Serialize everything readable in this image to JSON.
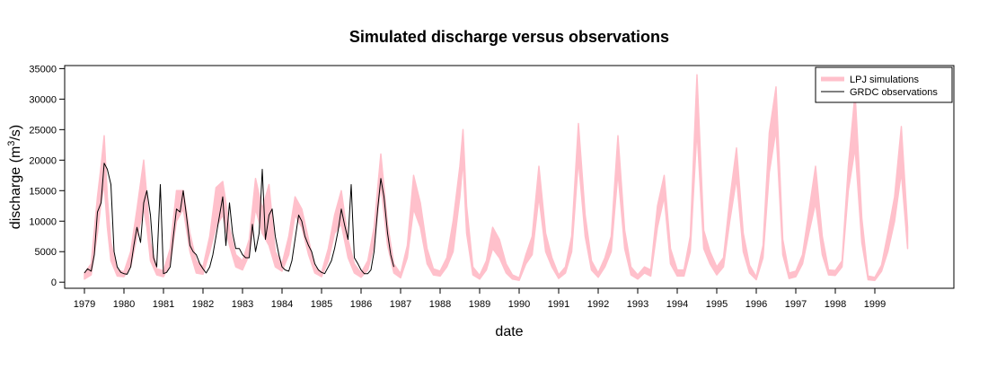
{
  "chart_data": {
    "type": "line",
    "title": "Simulated discharge versus observations",
    "xlabel": "date",
    "ylabel_main": "discharge (m",
    "ylabel_sup": "3",
    "ylabel_end": "/s)",
    "xlim": [
      1978.5,
      2001.0
    ],
    "ylim": [
      -1000,
      35500
    ],
    "x_ticks": [
      1979,
      1980,
      1981,
      1982,
      1983,
      1984,
      1985,
      1986,
      1987,
      1988,
      1989,
      1990,
      1991,
      1992,
      1993,
      1994,
      1995,
      1996,
      1997,
      1998,
      1999
    ],
    "x_tick_labels": [
      "1979",
      "1980",
      "1981",
      "1982",
      "1983",
      "1984",
      "1985",
      "1986",
      "1987",
      "1988",
      "1989",
      "1990",
      "1991",
      "1992",
      "1993",
      "1994",
      "1995",
      "1996",
      "1997",
      "1998",
      "1999"
    ],
    "y_ticks": [
      0,
      5000,
      10000,
      15000,
      20000,
      25000,
      30000,
      35000
    ],
    "y_tick_labels": [
      "0",
      "5000",
      "10000",
      "15000",
      "20000",
      "25000",
      "30000",
      "35000"
    ],
    "grid": false,
    "legend_position": "top-right",
    "series": [
      {
        "name": "LPJ simulations",
        "color": "#ffc0cb",
        "style": "band",
        "x": [
          1979.0,
          1979.17,
          1979.33,
          1979.42,
          1979.5,
          1979.58,
          1979.67,
          1979.83,
          1980.0,
          1980.17,
          1980.33,
          1980.5,
          1980.58,
          1980.67,
          1980.83,
          1981.0,
          1981.17,
          1981.33,
          1981.5,
          1981.67,
          1981.83,
          1982.0,
          1982.17,
          1982.33,
          1982.5,
          1982.67,
          1982.83,
          1983.0,
          1983.17,
          1983.33,
          1983.5,
          1983.67,
          1983.83,
          1984.0,
          1984.17,
          1984.33,
          1984.5,
          1984.67,
          1984.83,
          1985.0,
          1985.17,
          1985.33,
          1985.5,
          1985.67,
          1985.83,
          1986.0,
          1986.17,
          1986.33,
          1986.5,
          1986.67,
          1986.83,
          1987.0,
          1987.17,
          1987.33,
          1987.5,
          1987.67,
          1987.83,
          1988.0,
          1988.17,
          1988.33,
          1988.5,
          1988.58,
          1988.67,
          1988.83,
          1989.0,
          1989.17,
          1989.33,
          1989.5,
          1989.67,
          1989.83,
          1990.0,
          1990.17,
          1990.33,
          1990.5,
          1990.67,
          1990.83,
          1991.0,
          1991.17,
          1991.33,
          1991.5,
          1991.67,
          1991.83,
          1992.0,
          1992.17,
          1992.33,
          1992.5,
          1992.67,
          1992.83,
          1993.0,
          1993.17,
          1993.33,
          1993.5,
          1993.67,
          1993.83,
          1994.0,
          1994.17,
          1994.33,
          1994.5,
          1994.67,
          1994.83,
          1995.0,
          1995.17,
          1995.33,
          1995.5,
          1995.67,
          1995.83,
          1996.0,
          1996.17,
          1996.33,
          1996.5,
          1996.67,
          1996.83,
          1997.0,
          1997.17,
          1997.33,
          1997.5,
          1997.67,
          1997.83,
          1998.0,
          1998.17,
          1998.33,
          1998.5,
          1998.67,
          1998.83,
          1999.0,
          1999.17,
          1999.33,
          1999.5,
          1999.67,
          1999.83
        ],
        "low": [
          500,
          1200,
          8000,
          13000,
          16000,
          9000,
          3500,
          1000,
          900,
          2500,
          7500,
          12000,
          9000,
          3500,
          1200,
          900,
          3000,
          10000,
          12000,
          5000,
          1500,
          1300,
          5000,
          9000,
          11000,
          6000,
          2500,
          2000,
          4500,
          12000,
          8000,
          6000,
          2500,
          1800,
          4500,
          11000,
          9000,
          4500,
          1500,
          900,
          3500,
          8000,
          9500,
          4000,
          1500,
          800,
          2000,
          6000,
          16000,
          6000,
          1500,
          700,
          4000,
          12000,
          9000,
          3000,
          1200,
          1000,
          2500,
          5000,
          14000,
          20000,
          8000,
          1200,
          500,
          2000,
          5500,
          4000,
          1500,
          500,
          300,
          3000,
          4500,
          14000,
          5000,
          2500,
          600,
          1500,
          5000,
          20000,
          7500,
          2000,
          800,
          2500,
          5000,
          18000,
          5500,
          1200,
          500,
          1500,
          1000,
          9000,
          14000,
          3000,
          1000,
          1000,
          5000,
          25000,
          5500,
          3000,
          1200,
          2500,
          10000,
          17000,
          5000,
          1500,
          400,
          4000,
          18000,
          25000,
          4500,
          600,
          900,
          3000,
          8000,
          13000,
          4500,
          1200,
          1100,
          2500,
          15000,
          22000,
          6500,
          400,
          300,
          1800,
          5000,
          10000,
          18000,
          5500
        ],
        "high": [
          1500,
          3000,
          14000,
          19000,
          24000,
          14000,
          6500,
          2000,
          1700,
          5000,
          12000,
          20000,
          14000,
          6500,
          2200,
          1900,
          5500,
          15000,
          15000,
          8000,
          3500,
          2500,
          7500,
          15500,
          16500,
          9000,
          4500,
          3500,
          7000,
          17000,
          12000,
          16000,
          5000,
          3000,
          7500,
          14000,
          12000,
          7000,
          2500,
          1600,
          5500,
          11000,
          15000,
          7000,
          3000,
          1500,
          3500,
          9000,
          21000,
          9500,
          3000,
          1400,
          6000,
          17500,
          13000,
          5500,
          2200,
          1800,
          4000,
          10000,
          19000,
          25000,
          12500,
          2500,
          1100,
          3500,
          9000,
          7000,
          3000,
          1200,
          700,
          4500,
          7500,
          19000,
          8000,
          4000,
          1200,
          2500,
          7500,
          26000,
          11000,
          3500,
          1500,
          4000,
          7500,
          24000,
          8500,
          2500,
          1200,
          2500,
          2000,
          12500,
          17500,
          5500,
          2000,
          2000,
          7500,
          34000,
          8500,
          5000,
          2500,
          4000,
          13500,
          22000,
          8000,
          2800,
          900,
          6000,
          24500,
          32000,
          7000,
          1500,
          1800,
          4500,
          11500,
          19000,
          7500,
          2000,
          1900,
          3500,
          19000,
          31000,
          10500,
          1000,
          800,
          2800,
          8000,
          14000,
          25500,
          9000
        ]
      },
      {
        "name": "GRDC observations",
        "color": "#000000",
        "style": "line",
        "x": [
          1979.0,
          1979.08,
          1979.17,
          1979.25,
          1979.33,
          1979.42,
          1979.5,
          1979.58,
          1979.67,
          1979.75,
          1979.83,
          1979.92,
          1980.0,
          1980.08,
          1980.17,
          1980.25,
          1980.33,
          1980.42,
          1980.5,
          1980.58,
          1980.67,
          1980.75,
          1980.83,
          1980.92,
          1981.0,
          1981.08,
          1981.17,
          1981.25,
          1981.33,
          1981.42,
          1981.5,
          1981.58,
          1981.67,
          1981.75,
          1981.83,
          1981.92,
          1982.0,
          1982.08,
          1982.17,
          1982.25,
          1982.33,
          1982.42,
          1982.5,
          1982.58,
          1982.67,
          1982.75,
          1982.83,
          1982.92,
          1983.0,
          1983.08,
          1983.17,
          1983.25,
          1983.33,
          1983.42,
          1983.5,
          1983.58,
          1983.67,
          1983.75,
          1983.83,
          1983.92,
          1984.0,
          1984.08,
          1984.17,
          1984.25,
          1984.33,
          1984.42,
          1984.5,
          1984.58,
          1984.67,
          1984.75,
          1984.83,
          1984.92,
          1985.0,
          1985.08,
          1985.17,
          1985.25,
          1985.33,
          1985.42,
          1985.5,
          1985.58,
          1985.67,
          1985.75,
          1985.83,
          1985.92,
          1986.0,
          1986.08,
          1986.17,
          1986.25,
          1986.33,
          1986.42,
          1986.5,
          1986.58,
          1986.67,
          1986.75,
          1986.83
        ],
        "y": [
          1500,
          2200,
          1800,
          4500,
          11500,
          13000,
          19500,
          18500,
          16000,
          5000,
          2500,
          1600,
          1400,
          1300,
          2500,
          6000,
          9000,
          6500,
          13000,
          15000,
          11000,
          4000,
          2500,
          16000,
          1400,
          1600,
          2500,
          7500,
          12000,
          11500,
          15000,
          11000,
          6000,
          5000,
          4500,
          3000,
          2200,
          1500,
          2500,
          4500,
          7500,
          11000,
          14000,
          6000,
          13000,
          8000,
          5500,
          5500,
          4500,
          4000,
          4000,
          9500,
          5000,
          8000,
          18500,
          7000,
          11000,
          12000,
          7500,
          4500,
          2500,
          2000,
          1800,
          3500,
          7000,
          11000,
          10000,
          7500,
          6000,
          5000,
          3000,
          2000,
          1600,
          1400,
          2500,
          3500,
          5500,
          8500,
          12000,
          9500,
          7000,
          16000,
          4000,
          3000,
          2000,
          1400,
          1400,
          2000,
          5000,
          12000,
          17000,
          14000,
          8000,
          4500,
          2500
        ]
      }
    ]
  }
}
